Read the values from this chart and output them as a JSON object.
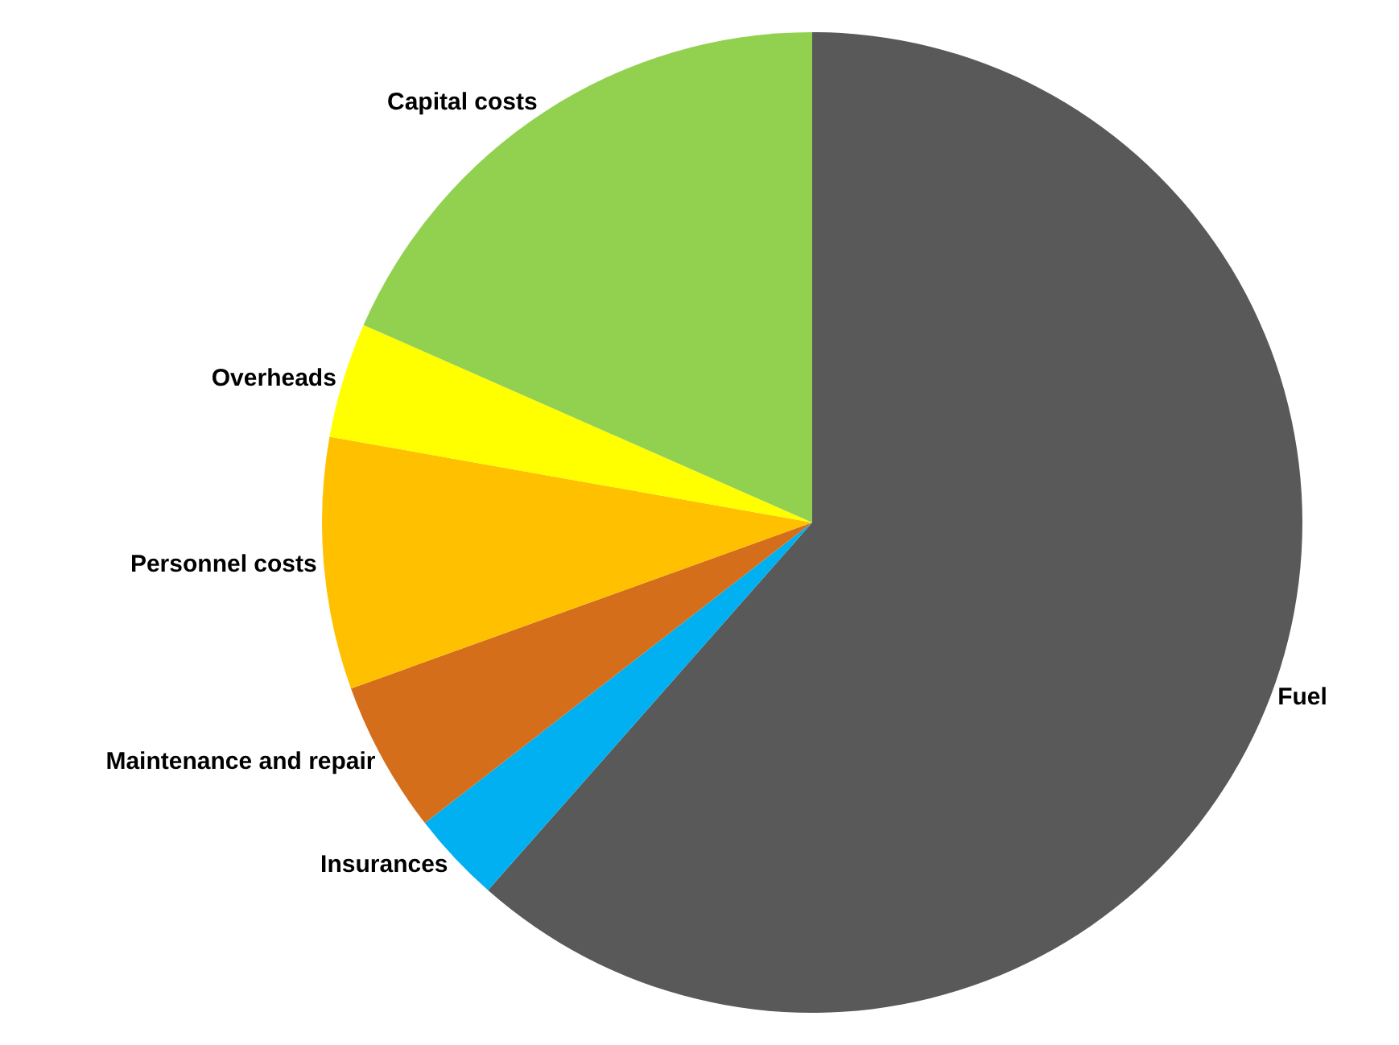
{
  "chart_data": {
    "type": "pie",
    "categories": [
      "Fuel",
      "Insurances",
      "Maintenance and repair",
      "Personnel costs",
      "Overheads",
      "Capital costs"
    ],
    "values": [
      61.5,
      3,
      5,
      8.3,
      3.8,
      18.4
    ],
    "colors": [
      "#595959",
      "#00b0f0",
      "#d56e1b",
      "#ffc000",
      "#ffff00",
      "#92d050"
    ],
    "legend": false
  }
}
